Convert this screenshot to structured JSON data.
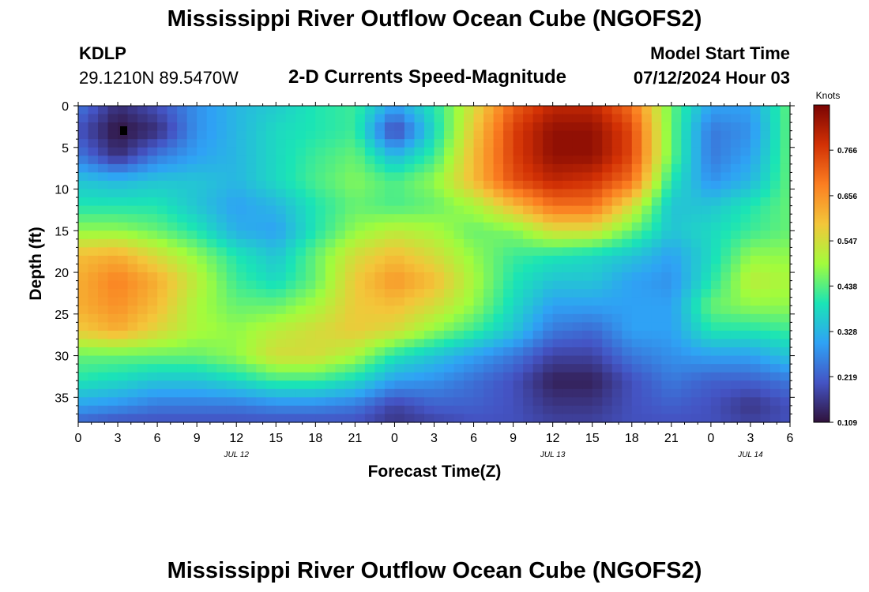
{
  "header": {
    "title": "Mississippi River Outflow Ocean Cube (NGOFS2)",
    "station": "KDLP",
    "coordinates": "29.1210N  89.5470W",
    "subtitle": "2-D Currents Speed-Magnitude",
    "model_start_label": "Model Start Time",
    "model_start_value": "07/12/2024 Hour 03"
  },
  "footer_title": "Mississippi River Outflow Ocean Cube (NGOFS2)",
  "chart_data": {
    "type": "heatmap",
    "xlabel": "Forecast Time(Z)",
    "ylabel": "Depth (ft)",
    "x_tick_labels": [
      "0",
      "3",
      "6",
      "9",
      "12",
      "15",
      "18",
      "21",
      "0",
      "3",
      "6",
      "9",
      "12",
      "15",
      "18",
      "21",
      "0",
      "3",
      "6"
    ],
    "date_labels": [
      "JUL 12",
      "JUL 13",
      "JUL 14"
    ],
    "y_tick_labels": [
      "0",
      "5",
      "10",
      "15",
      "20",
      "25",
      "30",
      "35"
    ],
    "xlim_hours": [
      0,
      54
    ],
    "ylim_ft": [
      0,
      38
    ],
    "colorbar": {
      "label": "Knots",
      "ticks": [
        "0.766",
        "0.656",
        "0.547",
        "0.438",
        "0.328",
        "0.219",
        "0.109"
      ],
      "range": [
        0.109,
        0.875
      ],
      "colors": [
        "#30123b",
        "#4454c4",
        "#2fa2f5",
        "#1ae4b6",
        "#a2fc3c",
        "#f3c63a",
        "#fb7e21",
        "#d23105",
        "#7a0403"
      ]
    },
    "grid_hours": [
      0,
      3,
      6,
      9,
      12,
      15,
      18,
      21,
      24,
      27,
      30,
      33,
      36,
      39,
      42,
      45,
      48,
      51,
      54
    ],
    "grid_depths_ft": [
      0,
      3,
      6,
      9,
      12,
      15,
      18,
      21,
      24,
      27,
      30,
      33,
      36,
      38
    ],
    "values": [
      [
        0.25,
        0.15,
        0.2,
        0.28,
        0.33,
        0.36,
        0.4,
        0.42,
        0.3,
        0.4,
        0.55,
        0.72,
        0.8,
        0.8,
        0.7,
        0.45,
        0.3,
        0.3,
        0.45
      ],
      [
        0.2,
        0.11,
        0.15,
        0.28,
        0.33,
        0.38,
        0.4,
        0.42,
        0.18,
        0.38,
        0.58,
        0.76,
        0.85,
        0.85,
        0.75,
        0.45,
        0.25,
        0.28,
        0.45
      ],
      [
        0.25,
        0.15,
        0.25,
        0.3,
        0.33,
        0.38,
        0.42,
        0.45,
        0.33,
        0.42,
        0.6,
        0.76,
        0.85,
        0.85,
        0.75,
        0.45,
        0.25,
        0.3,
        0.45
      ],
      [
        0.35,
        0.33,
        0.35,
        0.35,
        0.33,
        0.38,
        0.43,
        0.47,
        0.43,
        0.48,
        0.6,
        0.74,
        0.8,
        0.78,
        0.7,
        0.4,
        0.28,
        0.33,
        0.45
      ],
      [
        0.4,
        0.4,
        0.4,
        0.35,
        0.3,
        0.33,
        0.4,
        0.45,
        0.43,
        0.45,
        0.5,
        0.6,
        0.7,
        0.7,
        0.55,
        0.35,
        0.35,
        0.4,
        0.45
      ],
      [
        0.48,
        0.48,
        0.45,
        0.4,
        0.32,
        0.3,
        0.4,
        0.48,
        0.52,
        0.5,
        0.45,
        0.47,
        0.55,
        0.55,
        0.45,
        0.35,
        0.38,
        0.42,
        0.45
      ],
      [
        0.6,
        0.62,
        0.55,
        0.48,
        0.4,
        0.35,
        0.45,
        0.55,
        0.6,
        0.55,
        0.48,
        0.42,
        0.4,
        0.38,
        0.35,
        0.3,
        0.38,
        0.48,
        0.48
      ],
      [
        0.62,
        0.68,
        0.62,
        0.52,
        0.42,
        0.38,
        0.45,
        0.58,
        0.65,
        0.6,
        0.5,
        0.4,
        0.35,
        0.35,
        0.3,
        0.28,
        0.4,
        0.52,
        0.5
      ],
      [
        0.62,
        0.66,
        0.6,
        0.5,
        0.45,
        0.45,
        0.5,
        0.58,
        0.6,
        0.55,
        0.48,
        0.38,
        0.3,
        0.3,
        0.3,
        0.3,
        0.45,
        0.48,
        0.48
      ],
      [
        0.58,
        0.62,
        0.56,
        0.5,
        0.48,
        0.52,
        0.55,
        0.58,
        0.55,
        0.48,
        0.42,
        0.35,
        0.25,
        0.23,
        0.3,
        0.3,
        0.4,
        0.4,
        0.42
      ],
      [
        0.45,
        0.45,
        0.45,
        0.45,
        0.48,
        0.55,
        0.55,
        0.5,
        0.4,
        0.35,
        0.3,
        0.25,
        0.18,
        0.18,
        0.25,
        0.28,
        0.3,
        0.3,
        0.35
      ],
      [
        0.4,
        0.38,
        0.35,
        0.35,
        0.38,
        0.42,
        0.42,
        0.38,
        0.3,
        0.28,
        0.24,
        0.2,
        0.13,
        0.13,
        0.2,
        0.25,
        0.22,
        0.22,
        0.25
      ],
      [
        0.3,
        0.28,
        0.25,
        0.25,
        0.25,
        0.27,
        0.27,
        0.25,
        0.18,
        0.22,
        0.22,
        0.2,
        0.16,
        0.16,
        0.2,
        0.22,
        0.2,
        0.16,
        0.2
      ],
      [
        0.22,
        0.2,
        0.2,
        0.2,
        0.2,
        0.2,
        0.2,
        0.2,
        0.16,
        0.18,
        0.2,
        0.2,
        0.18,
        0.18,
        0.2,
        0.2,
        0.2,
        0.18,
        0.2
      ]
    ]
  }
}
